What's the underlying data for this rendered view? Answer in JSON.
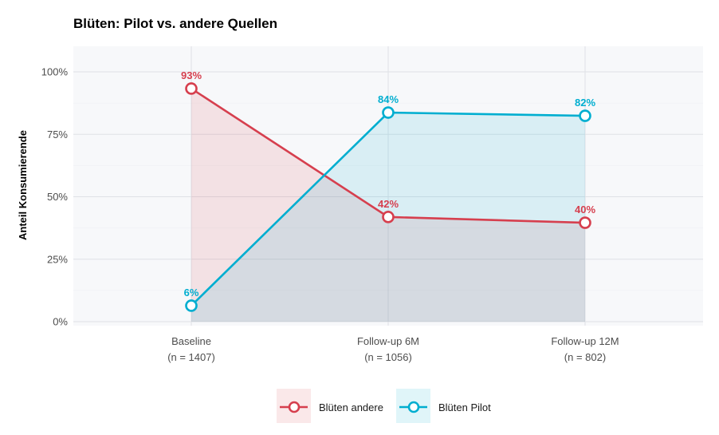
{
  "chart_data": {
    "type": "line",
    "title": "Blüten: Pilot vs. andere Quellen",
    "xlabel": "",
    "ylabel": "Anteil Konsumierende",
    "categories": [
      {
        "label": "Baseline",
        "n": "(n = 1407)"
      },
      {
        "label": "Follow-up 6M",
        "n": "(n = 1056)"
      },
      {
        "label": "Follow-up 12M",
        "n": "(n = 802)"
      }
    ],
    "ylim": [
      0,
      1.1
    ],
    "yticks": [
      {
        "value": 0,
        "label": "0%"
      },
      {
        "value": 0.25,
        "label": "25%"
      },
      {
        "value": 0.5,
        "label": "50%"
      },
      {
        "value": 0.75,
        "label": "75%"
      },
      {
        "value": 1,
        "label": "100%"
      }
    ],
    "grid": true,
    "area_fill": true,
    "legend_position": "bottom",
    "series": [
      {
        "name": "Blüten andere",
        "color": "#d63f4e",
        "values": [
          0.933,
          0.419,
          0.396
        ],
        "labels": [
          "93%",
          "42%",
          "40%"
        ]
      },
      {
        "name": "Blüten Pilot",
        "color": "#00aed0",
        "values": [
          0.064,
          0.837,
          0.824
        ],
        "labels": [
          "6%",
          "84%",
          "82%"
        ]
      }
    ]
  }
}
